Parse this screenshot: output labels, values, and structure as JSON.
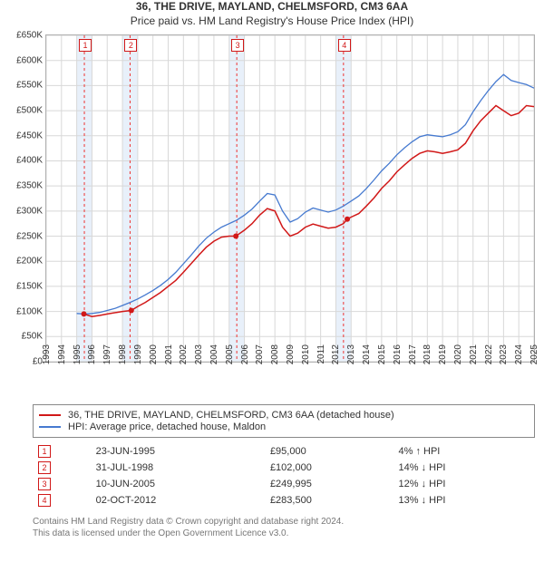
{
  "title": "36, THE DRIVE, MAYLAND, CHELMSFORD, CM3 6AA",
  "subtitle": "Price paid vs. HM Land Registry's House Price Index (HPI)",
  "chart": {
    "type": "line",
    "x": {
      "min": 1993,
      "max": 2025,
      "ticks": [
        1993,
        1994,
        1995,
        1996,
        1997,
        1998,
        1999,
        2000,
        2001,
        2002,
        2003,
        2004,
        2005,
        2006,
        2007,
        2008,
        2009,
        2010,
        2011,
        2012,
        2013,
        2014,
        2015,
        2016,
        2017,
        2018,
        2019,
        2020,
        2021,
        2022,
        2023,
        2024,
        2025
      ]
    },
    "y": {
      "min": 0,
      "max": 650,
      "ticks": [
        0,
        50,
        100,
        150,
        200,
        250,
        300,
        350,
        400,
        450,
        500,
        550,
        600,
        650
      ],
      "unit_prefix": "£",
      "unit_suffix": "K"
    },
    "grid_color": "#d8d8d8",
    "background_color": "#ffffff",
    "shaded_years": [
      1995,
      1998,
      2005,
      2012
    ],
    "shaded_color": "#e8f0fa",
    "sale_dash_color": "#e33",
    "series": [
      {
        "name": "36, THE DRIVE, MAYLAND, CHELMSFORD, CM3 6AA (detached house)",
        "color": "#d11818",
        "points": [
          [
            1995.47,
            95
          ],
          [
            1996,
            90
          ],
          [
            1996.5,
            92
          ],
          [
            1997,
            95
          ],
          [
            1997.6,
            98
          ],
          [
            1998,
            100
          ],
          [
            1998.58,
            102
          ],
          [
            1999,
            110
          ],
          [
            1999.5,
            118
          ],
          [
            2000,
            128
          ],
          [
            2000.5,
            138
          ],
          [
            2001,
            150
          ],
          [
            2001.5,
            162
          ],
          [
            2002,
            178
          ],
          [
            2002.5,
            195
          ],
          [
            2003,
            212
          ],
          [
            2003.5,
            228
          ],
          [
            2004,
            240
          ],
          [
            2004.5,
            248
          ],
          [
            2005,
            250
          ],
          [
            2005.44,
            250
          ],
          [
            2006,
            262
          ],
          [
            2006.5,
            275
          ],
          [
            2007,
            292
          ],
          [
            2007.5,
            305
          ],
          [
            2008,
            300
          ],
          [
            2008.5,
            268
          ],
          [
            2009,
            250
          ],
          [
            2009.5,
            256
          ],
          [
            2010,
            268
          ],
          [
            2010.5,
            274
          ],
          [
            2011,
            270
          ],
          [
            2011.5,
            266
          ],
          [
            2012,
            268
          ],
          [
            2012.5,
            275
          ],
          [
            2012.75,
            284
          ],
          [
            2013,
            288
          ],
          [
            2013.5,
            295
          ],
          [
            2014,
            310
          ],
          [
            2014.5,
            326
          ],
          [
            2015,
            345
          ],
          [
            2015.5,
            360
          ],
          [
            2016,
            378
          ],
          [
            2016.5,
            392
          ],
          [
            2017,
            405
          ],
          [
            2017.5,
            415
          ],
          [
            2018,
            420
          ],
          [
            2018.5,
            418
          ],
          [
            2019,
            415
          ],
          [
            2019.5,
            418
          ],
          [
            2020,
            422
          ],
          [
            2020.5,
            435
          ],
          [
            2021,
            460
          ],
          [
            2021.5,
            480
          ],
          [
            2022,
            495
          ],
          [
            2022.5,
            510
          ],
          [
            2023,
            500
          ],
          [
            2023.5,
            490
          ],
          [
            2024,
            495
          ],
          [
            2024.5,
            510
          ],
          [
            2025,
            508
          ]
        ]
      },
      {
        "name": "HPI: Average price, detached house, Maldon",
        "color": "#467ad0",
        "points": [
          [
            1995,
            96
          ],
          [
            1995.5,
            95
          ],
          [
            1996,
            96
          ],
          [
            1996.5,
            98
          ],
          [
            1997,
            102
          ],
          [
            1997.5,
            106
          ],
          [
            1998,
            112
          ],
          [
            1998.5,
            118
          ],
          [
            1999,
            125
          ],
          [
            1999.5,
            133
          ],
          [
            2000,
            142
          ],
          [
            2000.5,
            152
          ],
          [
            2001,
            164
          ],
          [
            2001.5,
            178
          ],
          [
            2002,
            195
          ],
          [
            2002.5,
            212
          ],
          [
            2003,
            230
          ],
          [
            2003.5,
            246
          ],
          [
            2004,
            258
          ],
          [
            2004.5,
            268
          ],
          [
            2005,
            275
          ],
          [
            2005.5,
            282
          ],
          [
            2006,
            292
          ],
          [
            2006.5,
            304
          ],
          [
            2007,
            320
          ],
          [
            2007.5,
            335
          ],
          [
            2008,
            332
          ],
          [
            2008.5,
            300
          ],
          [
            2009,
            278
          ],
          [
            2009.5,
            285
          ],
          [
            2010,
            298
          ],
          [
            2010.5,
            306
          ],
          [
            2011,
            302
          ],
          [
            2011.5,
            298
          ],
          [
            2012,
            302
          ],
          [
            2012.5,
            310
          ],
          [
            2013,
            320
          ],
          [
            2013.5,
            330
          ],
          [
            2014,
            345
          ],
          [
            2014.5,
            362
          ],
          [
            2015,
            380
          ],
          [
            2015.5,
            395
          ],
          [
            2016,
            412
          ],
          [
            2016.5,
            426
          ],
          [
            2017,
            438
          ],
          [
            2017.5,
            448
          ],
          [
            2018,
            452
          ],
          [
            2018.5,
            450
          ],
          [
            2019,
            448
          ],
          [
            2019.5,
            452
          ],
          [
            2020,
            458
          ],
          [
            2020.5,
            472
          ],
          [
            2021,
            498
          ],
          [
            2021.5,
            520
          ],
          [
            2022,
            540
          ],
          [
            2022.5,
            558
          ],
          [
            2023,
            572
          ],
          [
            2023.5,
            560
          ],
          [
            2024,
            556
          ],
          [
            2024.5,
            552
          ],
          [
            2025,
            545
          ]
        ]
      }
    ],
    "markers": [
      {
        "n": "1",
        "year": 1995.2
      },
      {
        "n": "2",
        "year": 1998.2
      },
      {
        "n": "3",
        "year": 2005.2
      },
      {
        "n": "4",
        "year": 2012.2
      }
    ]
  },
  "legend": {
    "a": "36, THE DRIVE, MAYLAND, CHELMSFORD, CM3 6AA (detached house)",
    "b": "HPI: Average price, detached house, Maldon"
  },
  "sales": [
    {
      "n": "1",
      "date": "23-JUN-1995",
      "price": "£95,000",
      "delta": "4% ↑ HPI"
    },
    {
      "n": "2",
      "date": "31-JUL-1998",
      "price": "£102,000",
      "delta": "14% ↓ HPI"
    },
    {
      "n": "3",
      "date": "10-JUN-2005",
      "price": "£249,995",
      "delta": "12% ↓ HPI"
    },
    {
      "n": "4",
      "date": "02-OCT-2012",
      "price": "£283,500",
      "delta": "13% ↓ HPI"
    }
  ],
  "footer": {
    "l1": "Contains HM Land Registry data © Crown copyright and database right 2024.",
    "l2": "This data is licensed under the Open Government Licence v3.0."
  }
}
